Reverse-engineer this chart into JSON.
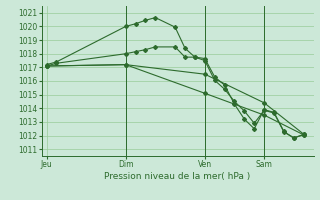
{
  "background_color": "#cce8d8",
  "grid_color": "#99cc99",
  "line_color": "#2d6b2d",
  "title": "Pression niveau de la mer( hPa )",
  "ylim": [
    1010.5,
    1021.5
  ],
  "yticks": [
    1011,
    1012,
    1013,
    1014,
    1015,
    1016,
    1017,
    1018,
    1019,
    1020,
    1021
  ],
  "xtick_labels": [
    "Jeu",
    "Dim",
    "Ven",
    "Sam"
  ],
  "xtick_positions": [
    0,
    8,
    16,
    22
  ],
  "vlines": [
    8,
    16,
    22
  ],
  "xlim": [
    -0.5,
    27
  ],
  "series": [
    {
      "x": [
        0,
        1,
        8,
        9,
        10,
        11,
        13,
        14,
        15,
        16,
        17,
        18,
        19,
        20,
        21,
        22,
        23,
        24,
        25,
        26
      ],
      "y": [
        1017.2,
        1017.4,
        1020.0,
        1020.2,
        1020.45,
        1020.65,
        1019.95,
        1018.4,
        1017.75,
        1017.65,
        1016.3,
        1015.7,
        1014.3,
        1013.2,
        1012.5,
        1013.9,
        1013.7,
        1012.3,
        1011.8,
        1012.1
      ]
    },
    {
      "x": [
        0,
        1,
        8,
        9,
        10,
        11,
        13,
        14,
        15,
        16,
        17,
        18,
        19,
        20,
        21,
        22,
        23,
        24,
        25,
        26
      ],
      "y": [
        1017.1,
        1017.3,
        1018.0,
        1018.15,
        1018.3,
        1018.5,
        1018.5,
        1017.75,
        1017.75,
        1017.5,
        1016.05,
        1015.4,
        1014.5,
        1013.8,
        1012.9,
        1013.85,
        1013.65,
        1012.25,
        1011.85,
        1012.05
      ]
    },
    {
      "x": [
        0,
        8,
        16,
        22,
        26
      ],
      "y": [
        1017.1,
        1017.2,
        1016.5,
        1014.4,
        1012.1
      ]
    },
    {
      "x": [
        0,
        8,
        16,
        22,
        26
      ],
      "y": [
        1017.1,
        1017.2,
        1015.1,
        1013.5,
        1012.05
      ]
    }
  ]
}
